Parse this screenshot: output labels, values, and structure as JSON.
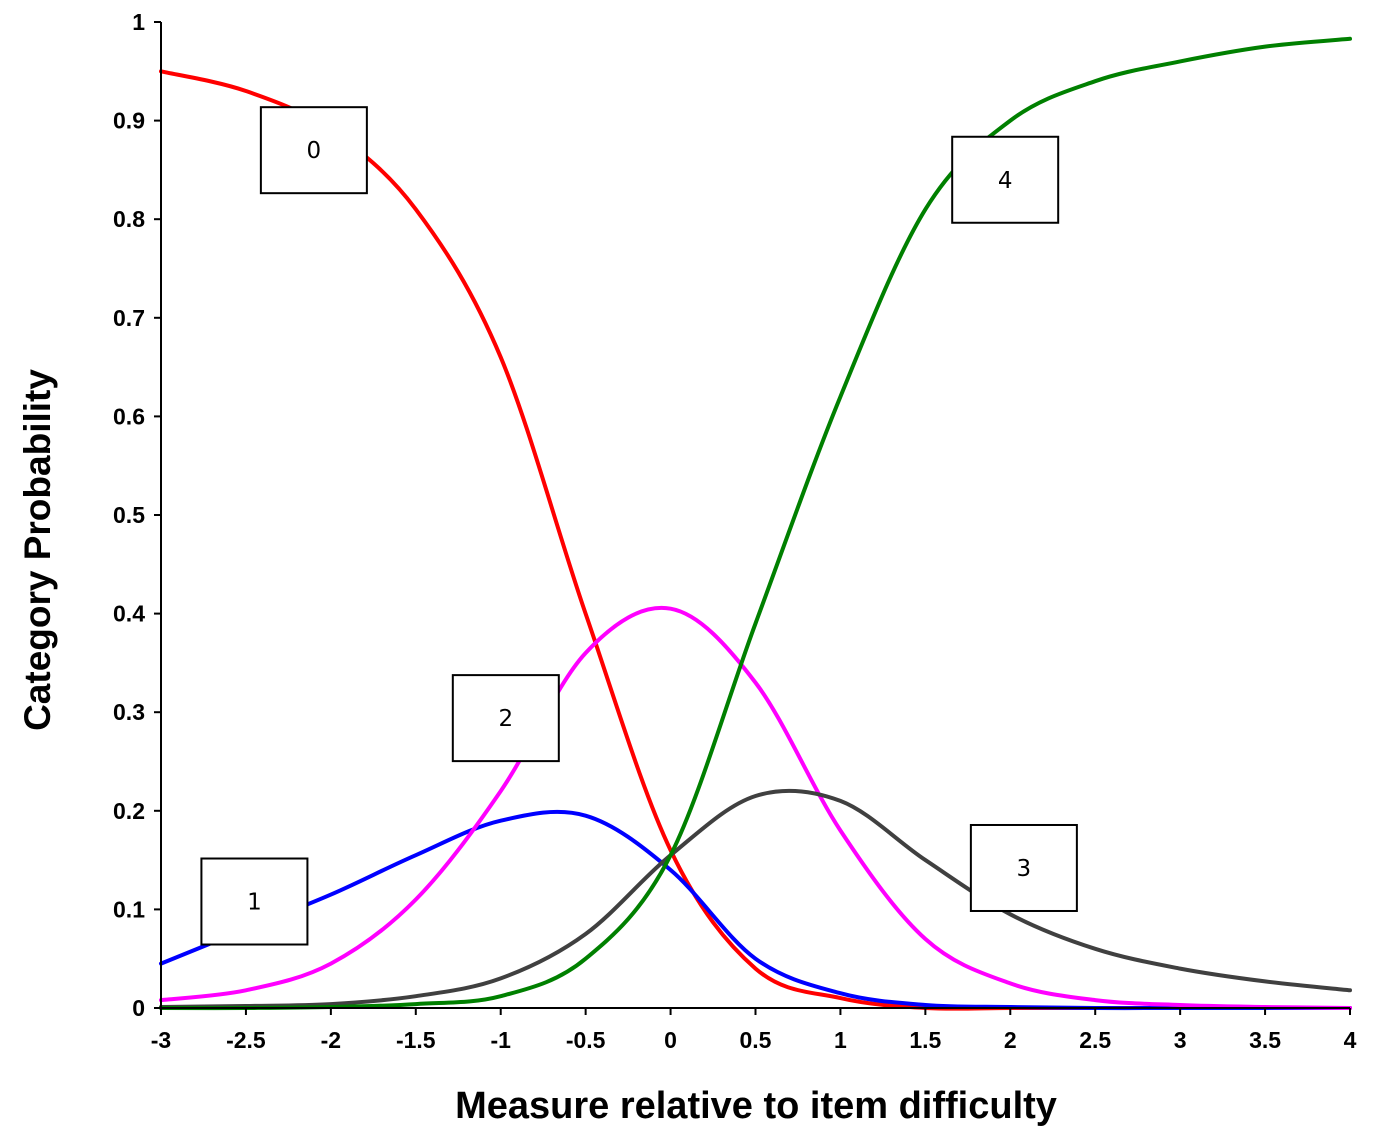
{
  "chart_data": {
    "type": "line",
    "title": "",
    "xlabel": "Measure relative to item difficulty",
    "ylabel": "Category Probability",
    "xlim": [
      -3,
      4
    ],
    "ylim": [
      0,
      1
    ],
    "xticks": [
      -3,
      -2.5,
      -2,
      -1.5,
      -1,
      -0.5,
      0,
      0.5,
      1,
      1.5,
      2,
      2.5,
      3,
      3.5,
      4
    ],
    "yticks": [
      0,
      0.1,
      0.2,
      0.3,
      0.4,
      0.5,
      0.6,
      0.7,
      0.8,
      0.9,
      1
    ],
    "xtick_labels": [
      "-3",
      "-2.5",
      "-2",
      "-1.5",
      "-1",
      "-0.5",
      "0",
      "0.5",
      "1",
      "1.5",
      "2",
      "2.5",
      "3",
      "3.5",
      "4"
    ],
    "ytick_labels": [
      "0",
      "0.1",
      "0.2",
      "0.3",
      "0.4",
      "0.5",
      "0.6",
      "0.7",
      "0.8",
      "0.9",
      "1"
    ],
    "grid": false,
    "x": [
      -3,
      -2.5,
      -2,
      -1.5,
      -1,
      -0.5,
      0,
      0.5,
      1,
      1.5,
      2,
      2.5,
      3,
      3.5,
      4
    ],
    "series": [
      {
        "label": "0",
        "color": "#ff0000",
        "values": [
          0.95,
          0.93,
          0.89,
          0.81,
          0.66,
          0.4,
          0.16,
          0.04,
          0.01,
          0.0,
          0.0,
          0.0,
          0.0,
          0.0,
          0.0
        ],
        "label_at": [
          -2.1,
          0.87
        ]
      },
      {
        "label": "1",
        "color": "#0000ff",
        "values": [
          0.045,
          0.08,
          0.115,
          0.155,
          0.19,
          0.195,
          0.14,
          0.05,
          0.015,
          0.003,
          0.001,
          0.0,
          0.0,
          0.0,
          0.0
        ],
        "label_at": [
          -2.45,
          0.108
        ]
      },
      {
        "label": "2",
        "color": "#ff00ff",
        "values": [
          0.008,
          0.018,
          0.045,
          0.11,
          0.22,
          0.36,
          0.405,
          0.33,
          0.18,
          0.07,
          0.025,
          0.008,
          0.003,
          0.001,
          0.0
        ],
        "label_at": [
          -0.97,
          0.294
        ]
      },
      {
        "label": "3",
        "color": "#404040",
        "values": [
          0.001,
          0.002,
          0.004,
          0.012,
          0.03,
          0.075,
          0.155,
          0.215,
          0.21,
          0.15,
          0.095,
          0.06,
          0.04,
          0.027,
          0.018
        ],
        "label_at": [
          2.08,
          0.142
        ]
      },
      {
        "label": "4",
        "color": "#008000",
        "values": [
          0.0,
          0.0,
          0.001,
          0.004,
          0.012,
          0.05,
          0.155,
          0.39,
          0.62,
          0.81,
          0.9,
          0.94,
          0.96,
          0.975,
          0.983
        ],
        "label_at": [
          1.97,
          0.84
        ]
      }
    ]
  }
}
